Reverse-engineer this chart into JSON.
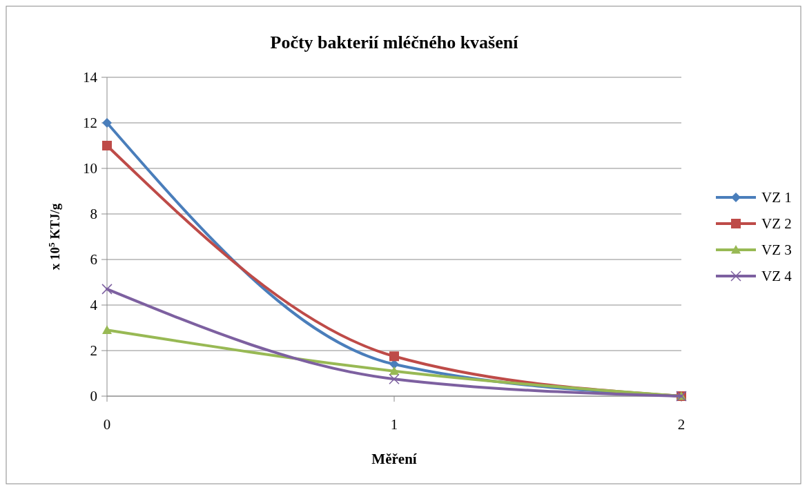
{
  "chart_data": {
    "type": "line",
    "title": "Počty bakterií mléčného kvašení",
    "xlabel": "Měření",
    "ylabel": "x 10$^{5}$ KTJ/g",
    "categories": [
      "0",
      "1",
      "2"
    ],
    "ylim": [
      0,
      14
    ],
    "yticks": [
      0,
      2,
      4,
      6,
      8,
      10,
      12,
      14
    ],
    "grid": "y",
    "legend": "right",
    "series": [
      {
        "name": "VZ 1",
        "color": "#4a7ebb",
        "marker": "diamond",
        "values": [
          12,
          1.4,
          0
        ]
      },
      {
        "name": "VZ 2",
        "color": "#be4b48",
        "marker": "square",
        "values": [
          11,
          1.75,
          0
        ]
      },
      {
        "name": "VZ 3",
        "color": "#98b954",
        "marker": "triangle",
        "values": [
          2.9,
          1.1,
          0
        ]
      },
      {
        "name": "VZ 4",
        "color": "#7d60a0",
        "marker": "cross",
        "values": [
          4.7,
          0.75,
          0
        ]
      }
    ]
  }
}
